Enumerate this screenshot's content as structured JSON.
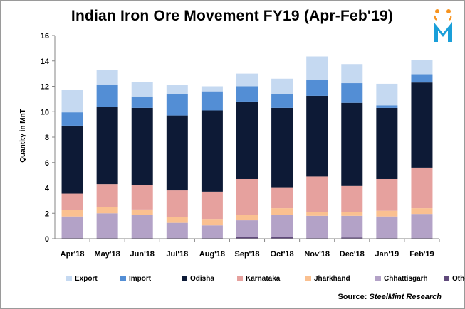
{
  "brand": {
    "colors": {
      "orange": "#F7931E",
      "blue": "#1A9FD9"
    }
  },
  "chart_data": {
    "type": "bar",
    "stacked": true,
    "title": "Indian Iron Ore Movement FY19 (Apr-Feb'19)",
    "xlabel": "",
    "ylabel": "Quantity in MnT",
    "ylim": [
      0,
      16
    ],
    "yticks": [
      "0",
      "2",
      "4",
      "6",
      "8",
      "10",
      "12",
      "14",
      "16"
    ],
    "grid": false,
    "legend_position": "bottom",
    "categories": [
      "Apr'18",
      "May'18",
      "Jun'18",
      "Jul'18",
      "Aug'18",
      "Sep'18",
      "Oct'18",
      "Nov'18",
      "Dec'18",
      "Jan'19",
      "Feb'19"
    ],
    "series": [
      {
        "name": "Others",
        "color": "#604A7B",
        "values": [
          0.05,
          0.05,
          0.05,
          0.05,
          0.05,
          0.15,
          0.15,
          0.05,
          0.1,
          0.05,
          0.05
        ]
      },
      {
        "name": "Chhattisgarh",
        "color": "#B3A2C7",
        "values": [
          1.7,
          1.95,
          1.8,
          1.2,
          1.0,
          1.3,
          1.75,
          1.75,
          1.7,
          1.7,
          1.9
        ]
      },
      {
        "name": "Jharkhand",
        "color": "#FAC090",
        "values": [
          0.5,
          0.5,
          0.45,
          0.45,
          0.45,
          0.45,
          0.5,
          0.3,
          0.3,
          0.45,
          0.45
        ]
      },
      {
        "name": "Karnataka",
        "color": "#E6A19E",
        "values": [
          1.3,
          1.8,
          1.95,
          2.1,
          2.2,
          2.8,
          1.65,
          2.8,
          2.05,
          2.5,
          3.2
        ]
      },
      {
        "name": "Odisha",
        "color": "#0D1A36",
        "values": [
          5.35,
          6.1,
          6.05,
          5.9,
          6.4,
          6.1,
          6.25,
          6.35,
          6.55,
          5.6,
          6.7
        ]
      },
      {
        "name": "Import",
        "color": "#538ED5",
        "values": [
          1.05,
          1.75,
          0.9,
          1.7,
          1.5,
          1.2,
          1.1,
          1.25,
          1.55,
          0.2,
          0.65
        ]
      },
      {
        "name": "Export",
        "color": "#C5D9F1",
        "values": [
          1.75,
          1.15,
          1.15,
          0.7,
          0.4,
          1.0,
          1.2,
          1.85,
          1.5,
          1.7,
          1.1
        ]
      }
    ],
    "legend_order": [
      "Export",
      "Import",
      "Odisha",
      "Karnataka",
      "Jharkhand",
      "Chhattisgarh",
      "Others"
    ],
    "source": {
      "prefix": "Source:",
      "org": "SteelMint",
      "suffix": "Research"
    }
  }
}
